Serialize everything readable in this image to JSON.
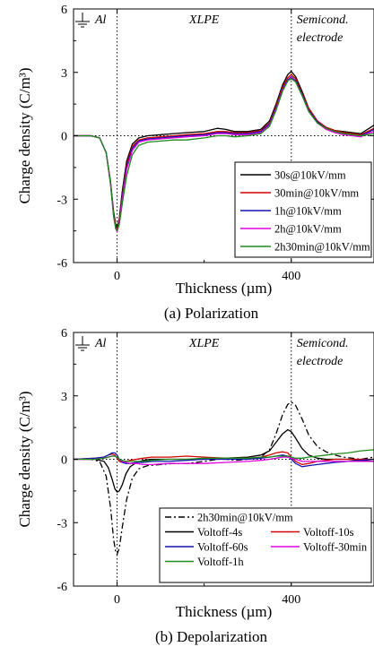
{
  "chart_data": [
    {
      "type": "line",
      "caption": "(a) Polarization",
      "xlabel": "Thickness (µm)",
      "ylabel": "Charge density (C/m³)",
      "xlim": [
        -100,
        590
      ],
      "ylim": [
        -6,
        6
      ],
      "xticks": [
        0,
        400
      ],
      "yticks": [
        -6,
        -3,
        0,
        3,
        6
      ],
      "regions": [
        "Al",
        "XLPE",
        "Semicond.",
        "electrode"
      ],
      "legend_position": "bottom-right",
      "grid": false,
      "series": [
        {
          "name": "30s@10kV/mm",
          "color": "#000000",
          "dash": "",
          "x": [
            -100,
            -60,
            -40,
            -25,
            -15,
            -8,
            -3,
            0,
            5,
            12,
            22,
            35,
            50,
            70,
            100,
            130,
            160,
            200,
            230,
            250,
            270,
            300,
            330,
            350,
            365,
            380,
            392,
            400,
            410,
            425,
            440,
            460,
            480,
            500,
            520,
            540,
            560,
            575,
            590
          ],
          "y": [
            0,
            0,
            -0.1,
            -0.8,
            -2.2,
            -3.6,
            -4.2,
            -4.35,
            -3.9,
            -2.6,
            -1.2,
            -0.4,
            -0.1,
            0,
            0.05,
            0.1,
            0.15,
            0.2,
            0.35,
            0.3,
            0.2,
            0.2,
            0.3,
            0.7,
            1.5,
            2.4,
            2.9,
            3.05,
            2.8,
            2.1,
            1.3,
            0.7,
            0.4,
            0.25,
            0.2,
            0.15,
            0.1,
            0.3,
            0.5
          ]
        },
        {
          "name": "30min@10kV/mm",
          "color": "#d40000",
          "dash": "",
          "x": [
            -100,
            -60,
            -40,
            -25,
            -15,
            -8,
            -3,
            0,
            5,
            12,
            22,
            35,
            50,
            70,
            100,
            130,
            160,
            200,
            230,
            250,
            270,
            300,
            330,
            350,
            365,
            380,
            392,
            400,
            410,
            425,
            440,
            460,
            480,
            500,
            520,
            540,
            560,
            575,
            590
          ],
          "y": [
            0,
            0,
            -0.1,
            -0.8,
            -2.2,
            -3.7,
            -4.3,
            -4.45,
            -4.0,
            -2.8,
            -1.4,
            -0.5,
            -0.2,
            -0.1,
            -0.05,
            0,
            0.05,
            0.1,
            0.2,
            0.2,
            0.15,
            0.15,
            0.25,
            0.6,
            1.4,
            2.3,
            2.75,
            2.9,
            2.7,
            2.0,
            1.3,
            0.7,
            0.4,
            0.25,
            0.15,
            0.1,
            0.05,
            0.2,
            0.35
          ]
        },
        {
          "name": "1h@10kV/mm",
          "color": "#1515b0",
          "dash": "",
          "x": [
            -100,
            -60,
            -40,
            -25,
            -15,
            -8,
            -3,
            0,
            5,
            12,
            22,
            35,
            50,
            70,
            100,
            130,
            160,
            200,
            230,
            250,
            270,
            300,
            330,
            350,
            365,
            380,
            392,
            400,
            410,
            425,
            440,
            460,
            480,
            500,
            520,
            540,
            560,
            575,
            590
          ],
          "y": [
            0,
            0,
            -0.1,
            -0.8,
            -2.3,
            -3.8,
            -4.4,
            -4.5,
            -4.1,
            -2.9,
            -1.5,
            -0.6,
            -0.25,
            -0.15,
            -0.1,
            -0.05,
            0,
            0.05,
            0.15,
            0.15,
            0.1,
            0.1,
            0.2,
            0.55,
            1.3,
            2.2,
            2.65,
            2.8,
            2.6,
            1.95,
            1.2,
            0.65,
            0.35,
            0.2,
            0.1,
            0.05,
            0,
            0.15,
            0.3
          ]
        },
        {
          "name": "2h@10kV/mm",
          "color": "#e000e0",
          "dash": "",
          "x": [
            -100,
            -60,
            -40,
            -25,
            -15,
            -8,
            -3,
            0,
            5,
            12,
            22,
            35,
            50,
            70,
            100,
            130,
            160,
            200,
            230,
            250,
            270,
            300,
            330,
            350,
            365,
            380,
            392,
            400,
            410,
            425,
            440,
            460,
            480,
            500,
            520,
            540,
            560,
            575,
            590
          ],
          "y": [
            0,
            0,
            -0.1,
            -0.8,
            -2.3,
            -3.8,
            -4.4,
            -4.55,
            -4.1,
            -3.0,
            -1.6,
            -0.7,
            -0.3,
            -0.2,
            -0.15,
            -0.1,
            -0.05,
            0,
            0.1,
            0.1,
            0.05,
            0.05,
            0.15,
            0.5,
            1.25,
            2.15,
            2.6,
            2.75,
            2.55,
            1.9,
            1.15,
            0.6,
            0.3,
            0.15,
            0.05,
            0,
            -0.05,
            0.1,
            0.2
          ]
        },
        {
          "name": "2h30min@10kV/mm",
          "color": "#1e8c1e",
          "dash": "",
          "x": [
            -100,
            -60,
            -40,
            -25,
            -15,
            -8,
            -3,
            0,
            5,
            12,
            22,
            35,
            50,
            70,
            100,
            130,
            160,
            200,
            230,
            250,
            270,
            300,
            330,
            350,
            365,
            380,
            392,
            400,
            410,
            425,
            440,
            460,
            480,
            500,
            520,
            540,
            560,
            575,
            590
          ],
          "y": [
            0,
            0,
            -0.1,
            -0.8,
            -2.3,
            -3.8,
            -4.4,
            -4.5,
            -4.2,
            -3.2,
            -1.9,
            -0.9,
            -0.45,
            -0.3,
            -0.25,
            -0.2,
            -0.2,
            -0.1,
            0,
            0,
            -0.05,
            0,
            0.1,
            0.45,
            1.2,
            2.1,
            2.6,
            2.7,
            2.55,
            1.9,
            1.15,
            0.6,
            0.35,
            0.2,
            0.1,
            0.05,
            0,
            0.05,
            0.1
          ]
        }
      ]
    },
    {
      "type": "line",
      "caption": "(b) Depolarization",
      "xlabel": "Thickness (µm)",
      "ylabel": "Charge density (C/m³)",
      "xlim": [
        -100,
        590
      ],
      "ylim": [
        -6,
        6
      ],
      "xticks": [
        0,
        400
      ],
      "yticks": [
        -6,
        -3,
        0,
        3,
        6
      ],
      "regions": [
        "Al",
        "XLPE",
        "Semicond.",
        "electrode"
      ],
      "legend_position": "bottom",
      "grid": false,
      "series": [
        {
          "name": "2h30min@10kV/mm",
          "color": "#000000",
          "dash": "7,3,2,3",
          "x": [
            -100,
            -60,
            -40,
            -25,
            -15,
            -8,
            -3,
            0,
            5,
            12,
            22,
            35,
            50,
            70,
            100,
            130,
            160,
            200,
            230,
            250,
            270,
            300,
            330,
            350,
            365,
            380,
            392,
            400,
            410,
            425,
            440,
            460,
            480,
            500,
            520,
            540,
            560,
            575,
            590
          ],
          "y": [
            0,
            0,
            -0.1,
            -0.8,
            -2.3,
            -3.8,
            -4.4,
            -4.5,
            -4.2,
            -3.2,
            -1.9,
            -0.9,
            -0.45,
            -0.3,
            -0.25,
            -0.2,
            -0.2,
            -0.1,
            0,
            0,
            -0.05,
            0,
            0.1,
            0.45,
            1.2,
            2.1,
            2.6,
            2.7,
            2.55,
            1.9,
            1.15,
            0.6,
            0.35,
            0.2,
            0.1,
            0.05,
            0,
            0.05,
            0.1
          ]
        },
        {
          "name": "Voltoff-4s",
          "color": "#000000",
          "dash": "",
          "x": [
            -100,
            -50,
            -30,
            -20,
            -12,
            -5,
            0,
            5,
            12,
            20,
            30,
            45,
            60,
            80,
            120,
            160,
            200,
            250,
            300,
            330,
            350,
            365,
            380,
            392,
            400,
            410,
            425,
            440,
            460,
            480,
            500,
            530,
            560,
            590
          ],
          "y": [
            0,
            0,
            -0.1,
            -0.4,
            -0.9,
            -1.4,
            -1.55,
            -1.5,
            -1.2,
            -0.7,
            -0.35,
            -0.15,
            -0.05,
            0,
            0,
            0,
            0,
            0.05,
            0.1,
            0.2,
            0.4,
            0.8,
            1.2,
            1.4,
            1.3,
            1.0,
            0.5,
            0.2,
            0.05,
            0,
            0,
            0,
            -0.05,
            -0.1
          ]
        },
        {
          "name": "Voltoff-10s",
          "color": "#d40000",
          "dash": "",
          "x": [
            -100,
            -50,
            -30,
            -20,
            -12,
            -5,
            0,
            5,
            12,
            20,
            30,
            45,
            60,
            80,
            120,
            160,
            200,
            250,
            300,
            330,
            350,
            365,
            380,
            392,
            400,
            410,
            425,
            440,
            460,
            480,
            500,
            530,
            560,
            590
          ],
          "y": [
            0,
            0.05,
            0.1,
            0.2,
            0.25,
            0.2,
            0.05,
            -0.1,
            -0.15,
            -0.1,
            -0.05,
            0,
            0.05,
            0.1,
            0.1,
            0.15,
            0.1,
            0.05,
            0.05,
            0.1,
            0.2,
            0.3,
            0.35,
            0.3,
            0.1,
            -0.1,
            -0.25,
            -0.2,
            -0.1,
            -0.05,
            0,
            0,
            0,
            0
          ]
        },
        {
          "name": "Voltoff-60s",
          "color": "#1515b0",
          "dash": "",
          "x": [
            -100,
            -50,
            -30,
            -20,
            -12,
            -5,
            0,
            5,
            12,
            20,
            30,
            45,
            60,
            80,
            120,
            160,
            200,
            250,
            300,
            330,
            350,
            365,
            380,
            392,
            400,
            410,
            425,
            440,
            460,
            480,
            500,
            530,
            560,
            590
          ],
          "y": [
            0,
            0.05,
            0.1,
            0.2,
            0.3,
            0.3,
            0.2,
            0,
            -0.15,
            -0.2,
            -0.2,
            -0.15,
            -0.15,
            -0.1,
            -0.1,
            -0.05,
            0,
            0,
            0,
            0.05,
            0.1,
            0.15,
            0.2,
            0.15,
            0,
            -0.2,
            -0.35,
            -0.3,
            -0.25,
            -0.2,
            -0.15,
            -0.1,
            -0.05,
            0
          ]
        },
        {
          "name": "Voltoff-30min",
          "color": "#e000e0",
          "dash": "",
          "x": [
            -100,
            -50,
            -30,
            -20,
            -12,
            -5,
            0,
            5,
            12,
            20,
            30,
            45,
            60,
            80,
            120,
            160,
            200,
            250,
            300,
            330,
            350,
            365,
            380,
            392,
            400,
            410,
            425,
            440,
            460,
            480,
            500,
            530,
            560,
            590
          ],
          "y": [
            0,
            0,
            0.05,
            0.1,
            0.15,
            0.15,
            0.1,
            0,
            -0.1,
            -0.15,
            -0.2,
            -0.2,
            -0.25,
            -0.25,
            -0.2,
            -0.2,
            -0.2,
            -0.15,
            -0.1,
            -0.05,
            0,
            0.05,
            0.1,
            0.1,
            0.05,
            0,
            -0.1,
            -0.1,
            -0.1,
            -0.1,
            -0.1,
            -0.1,
            -0.1,
            -0.1
          ]
        },
        {
          "name": "Voltoff-1h",
          "color": "#1e8c1e",
          "dash": "",
          "x": [
            -100,
            -50,
            -30,
            -20,
            -12,
            -5,
            0,
            5,
            12,
            20,
            30,
            45,
            60,
            80,
            120,
            160,
            200,
            250,
            300,
            330,
            350,
            365,
            380,
            392,
            400,
            410,
            425,
            440,
            460,
            480,
            500,
            530,
            560,
            590
          ],
          "y": [
            0,
            0,
            0.05,
            0.1,
            0.15,
            0.15,
            0.1,
            0,
            -0.05,
            -0.1,
            -0.1,
            -0.1,
            -0.1,
            -0.05,
            0,
            0,
            0.05,
            0.05,
            0.05,
            0.1,
            0.1,
            0.15,
            0.15,
            0.15,
            0.1,
            0.05,
            0.05,
            0.1,
            0.15,
            0.2,
            0.25,
            0.3,
            0.4,
            0.45
          ]
        }
      ]
    }
  ]
}
